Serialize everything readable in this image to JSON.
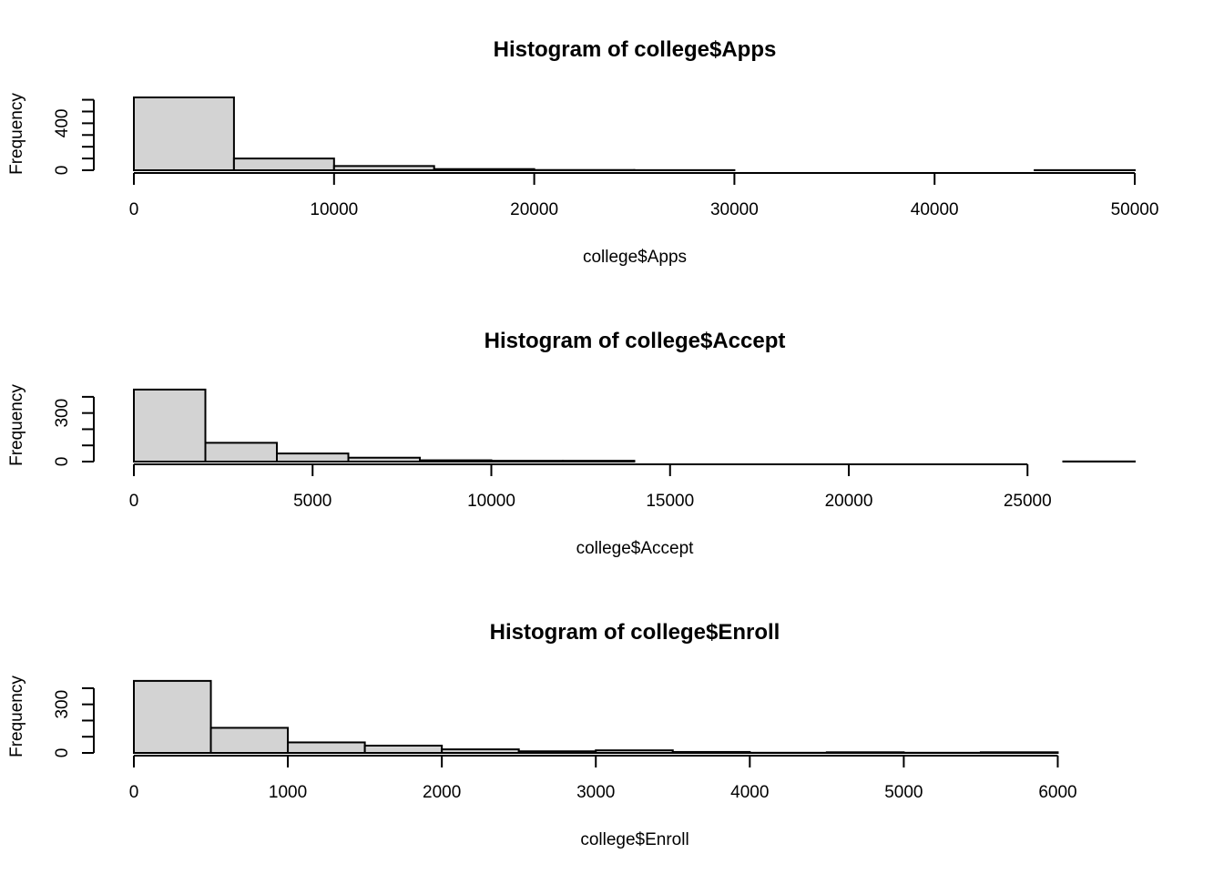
{
  "colors": {
    "bar_fill": "#d3d3d3",
    "bar_stroke": "#000000",
    "background": "#ffffff"
  },
  "chart_data": [
    {
      "type": "bar",
      "title": "Histogram of college$Apps",
      "xlabel": "college$Apps",
      "ylabel": "Frequency",
      "bin_edges": [
        0,
        5000,
        10000,
        15000,
        20000,
        25000,
        30000,
        35000,
        40000,
        45000,
        50000
      ],
      "values": [
        620,
        100,
        36,
        10,
        2,
        1,
        0,
        0,
        0,
        1
      ],
      "xlim": [
        0,
        50000
      ],
      "ylim": [
        0,
        620
      ],
      "xticks": [
        0,
        10000,
        20000,
        30000,
        40000,
        50000
      ],
      "xtick_labels": [
        "0",
        "10000",
        "20000",
        "30000",
        "40000",
        "50000"
      ],
      "yticks": [
        0,
        100,
        200,
        300,
        400,
        500,
        600
      ],
      "ytick_labels": [
        "0",
        "",
        "",
        "",
        "400",
        "",
        ""
      ]
    },
    {
      "type": "bar",
      "title": "Histogram of college$Accept",
      "xlabel": "college$Accept",
      "ylabel": "Frequency",
      "bin_edges": [
        0,
        2000,
        4000,
        6000,
        8000,
        10000,
        12000,
        14000,
        16000,
        18000,
        20000,
        22000,
        24000,
        26000,
        28000
      ],
      "values": [
        445,
        116,
        50,
        24,
        8,
        5,
        5,
        0,
        0,
        0,
        0,
        0,
        0,
        1
      ],
      "xlim": [
        0,
        28000
      ],
      "ylim": [
        0,
        450
      ],
      "xticks": [
        0,
        5000,
        10000,
        15000,
        20000,
        25000
      ],
      "xtick_labels": [
        "0",
        "5000",
        "10000",
        "15000",
        "20000",
        "25000"
      ],
      "yticks": [
        0,
        100,
        200,
        300,
        400
      ],
      "ytick_labels": [
        "0",
        "",
        "",
        "300",
        ""
      ]
    },
    {
      "type": "bar",
      "title": "Histogram of college$Enroll",
      "xlabel": "college$Enroll",
      "ylabel": "Frequency",
      "bin_edges": [
        0,
        500,
        1000,
        1500,
        2000,
        2500,
        3000,
        3500,
        4000,
        4500,
        5000,
        5500,
        6000,
        6500
      ],
      "values": [
        445,
        155,
        65,
        45,
        22,
        10,
        16,
        6,
        1,
        4,
        1,
        4,
        0
      ],
      "xlim": [
        0,
        6500
      ],
      "ylim": [
        0,
        450
      ],
      "xticks": [
        0,
        1000,
        2000,
        3000,
        4000,
        5000,
        6000
      ],
      "xtick_labels": [
        "0",
        "1000",
        "2000",
        "3000",
        "4000",
        "5000",
        "6000"
      ],
      "yticks": [
        0,
        100,
        200,
        300,
        400
      ],
      "ytick_labels": [
        "0",
        "",
        "",
        "300",
        ""
      ]
    }
  ]
}
